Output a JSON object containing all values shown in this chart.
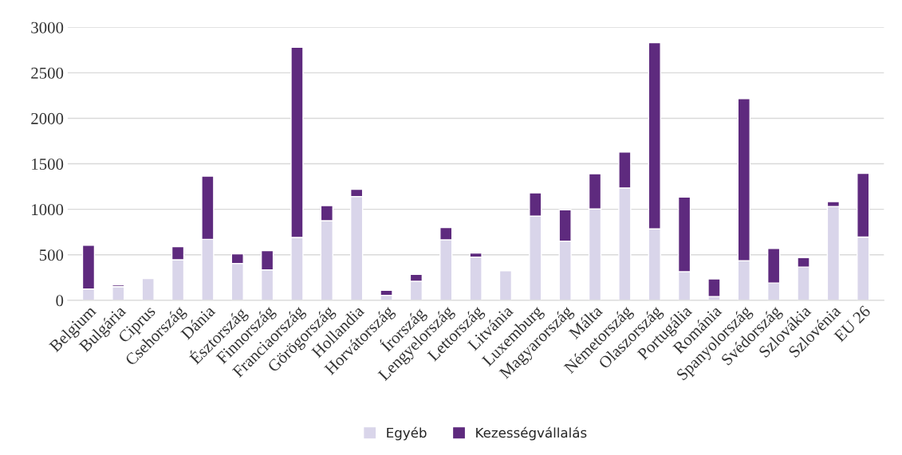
{
  "chart_data": {
    "type": "bar",
    "stacked": true,
    "categories": [
      "Belgium",
      "Bulgária",
      "Ciprus",
      "Csehország",
      "Dánia",
      "Észtország",
      "Finnország",
      "Franciaország",
      "Görögország",
      "Hollandia",
      "Horvátország",
      "Írország",
      "Lengyelország",
      "Lettország",
      "Litvánia",
      "Luxemburg",
      "Magyarország",
      "Málta",
      "Németország",
      "Olaszország",
      "Portugália",
      "Románia",
      "Spanyolország",
      "Svédország",
      "Szlovákia",
      "Szlovénia",
      "EU 26"
    ],
    "series": [
      {
        "name": "Egyéb",
        "color": "#d9d5ea",
        "values": [
          125,
          150,
          240,
          445,
          670,
          405,
          335,
          690,
          875,
          1140,
          55,
          210,
          665,
          475,
          325,
          925,
          650,
          1005,
          1235,
          785,
          315,
          40,
          435,
          190,
          365,
          1030,
          695
        ]
      },
      {
        "name": "Kezességvállalás",
        "color": "#5e2a7e",
        "values": [
          480,
          20,
          null,
          145,
          695,
          105,
          210,
          2090,
          165,
          80,
          55,
          75,
          135,
          45,
          null,
          255,
          345,
          385,
          395,
          2045,
          820,
          195,
          1780,
          380,
          105,
          55,
          700
        ]
      }
    ],
    "ylim": [
      0,
      3000
    ],
    "yticks": [
      0,
      500,
      1000,
      1500,
      2000,
      2500,
      3000
    ],
    "grid": "y",
    "legend": "bottom"
  }
}
